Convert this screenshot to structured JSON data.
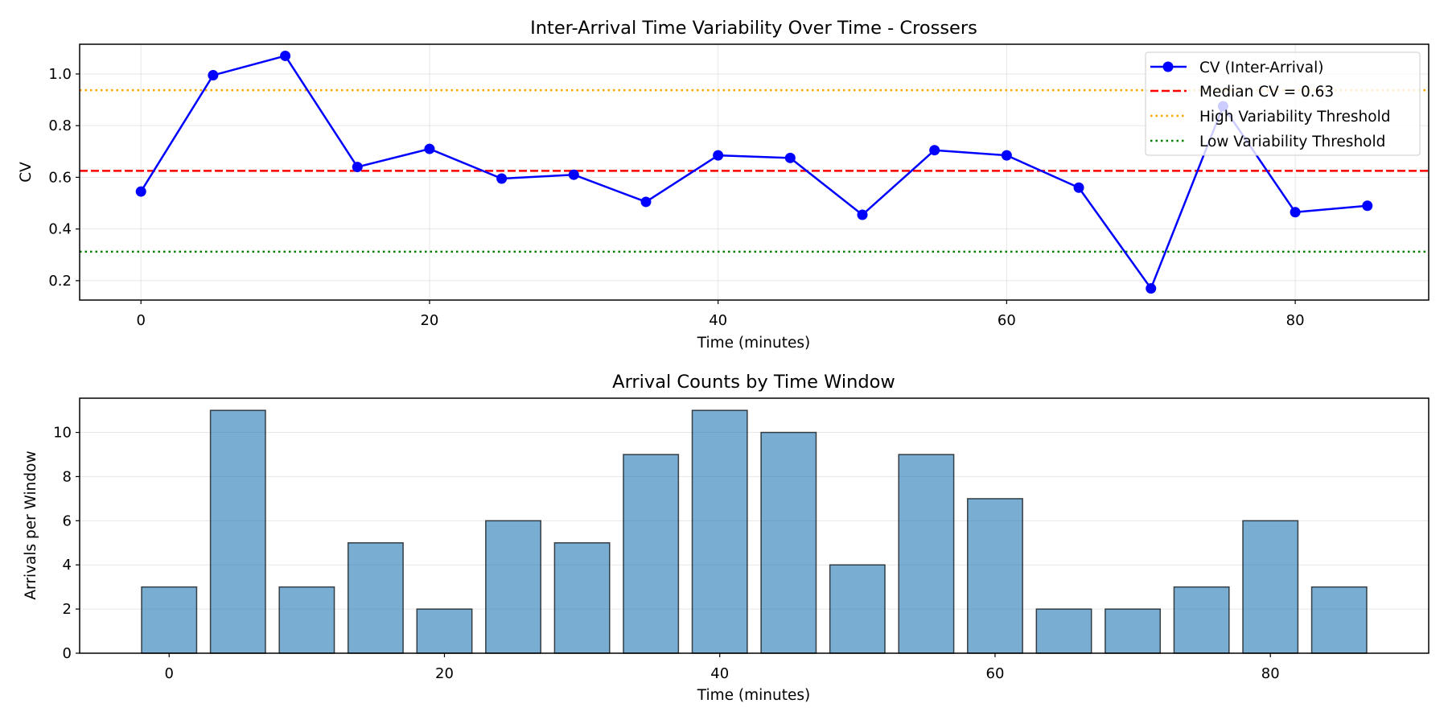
{
  "chart_data": [
    {
      "type": "line",
      "title": "Inter-Arrival Time Variability Over Time - Crossers",
      "xlabel": "Time (minutes)",
      "ylabel": "CV",
      "xlim": [
        -4.25,
        89.25
      ],
      "ylim": [
        0.125,
        1.115
      ],
      "xticks": [
        0,
        20,
        40,
        60,
        80
      ],
      "yticks": [
        0.2,
        0.4,
        0.6,
        0.8,
        1.0
      ],
      "ytick_labels": [
        "0.2",
        "0.4",
        "0.6",
        "0.8",
        "1.0"
      ],
      "grid": true,
      "legend_position": "upper-right",
      "series": [
        {
          "name": "CV (Inter-Arrival)",
          "color": "#0000ff",
          "marker": "circle",
          "x": [
            0,
            5,
            10,
            15,
            20,
            25,
            30,
            35,
            40,
            45,
            50,
            55,
            60,
            65,
            70,
            75,
            80,
            85
          ],
          "y": [
            0.545,
            0.995,
            1.07,
            0.64,
            0.71,
            0.595,
            0.61,
            0.505,
            0.685,
            0.675,
            0.455,
            0.705,
            0.685,
            0.56,
            0.17,
            0.875,
            0.465,
            0.49
          ]
        }
      ],
      "reference_lines": [
        {
          "name": "Median CV = 0.63",
          "y": 0.625,
          "color": "#ff0000",
          "style": "dashed"
        },
        {
          "name": "High Variability Threshold",
          "y": 0.937,
          "color": "#ffa500",
          "style": "dotted"
        },
        {
          "name": "Low Variability Threshold",
          "y": 0.312,
          "color": "#008000",
          "style": "dotted"
        }
      ]
    },
    {
      "type": "bar",
      "title": "Arrival Counts by Time Window",
      "xlabel": "Time (minutes)",
      "ylabel": "Arrivals per Window",
      "xlim": [
        -6.5,
        91.5
      ],
      "ylim": [
        0,
        11.55
      ],
      "xticks": [
        0,
        20,
        40,
        60,
        80
      ],
      "yticks": [
        0,
        2,
        4,
        6,
        8,
        10
      ],
      "grid": true,
      "bar_color": "#1f77b4",
      "bar_edge_color": "#000000",
      "bar_width": 4,
      "x": [
        0,
        5,
        10,
        15,
        20,
        25,
        30,
        35,
        40,
        45,
        50,
        55,
        60,
        65,
        70,
        75,
        80,
        85
      ],
      "values": [
        3,
        11,
        3,
        5,
        2,
        6,
        5,
        9,
        11,
        10,
        4,
        9,
        7,
        2,
        2,
        3,
        6,
        3
      ]
    }
  ]
}
